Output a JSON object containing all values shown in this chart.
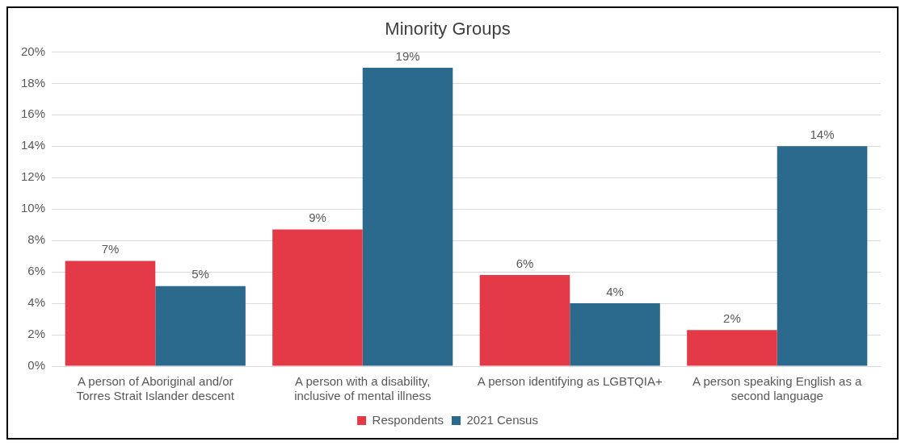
{
  "chart_data": {
    "type": "bar",
    "title": "Minority Groups",
    "categories": [
      "A person of Aboriginal and/or Torres Strait Islander descent",
      "A person with a disability, inclusive of mental illness",
      "A person identifying as LGBTQIA+",
      "A person speaking English as a second language"
    ],
    "series": [
      {
        "name": "Respondents",
        "color": "#e43a47",
        "values": [
          6.7,
          8.7,
          5.8,
          2.3
        ],
        "value_labels": [
          "7%",
          "9%",
          "6%",
          "2%"
        ]
      },
      {
        "name": "2021 Census",
        "color": "#2b6a8c",
        "values": [
          5.1,
          19,
          4,
          14
        ],
        "value_labels": [
          "5%",
          "19%",
          "4%",
          "14%"
        ]
      }
    ],
    "ylim": [
      0,
      20
    ],
    "yticks": [
      {
        "value": 0,
        "label": "0%"
      },
      {
        "value": 2,
        "label": "2%"
      },
      {
        "value": 4,
        "label": "4%"
      },
      {
        "value": 6,
        "label": "6%"
      },
      {
        "value": 8,
        "label": "8%"
      },
      {
        "value": 10,
        "label": "10%"
      },
      {
        "value": 12,
        "label": "12%"
      },
      {
        "value": 14,
        "label": "14%"
      },
      {
        "value": 16,
        "label": "16%"
      },
      {
        "value": 18,
        "label": "18%"
      },
      {
        "value": 20,
        "label": "20%"
      }
    ],
    "grid": "y",
    "legend": "bottom"
  }
}
